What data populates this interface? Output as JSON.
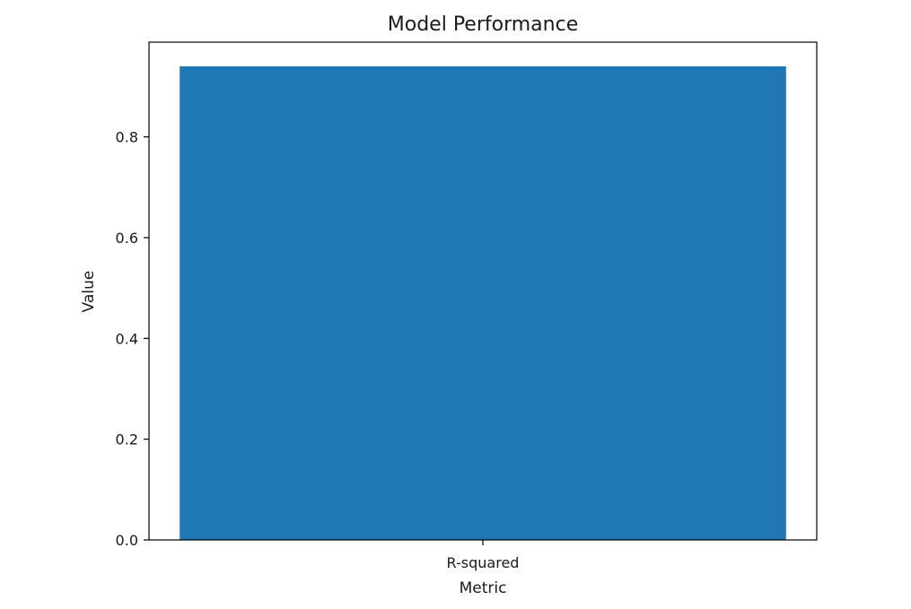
{
  "chart_data": {
    "type": "bar",
    "title": "Model Performance",
    "xlabel": "Metric",
    "ylabel": "Value",
    "categories": [
      "R-squared"
    ],
    "values": [
      0.94
    ],
    "ylim": [
      0,
      0.988
    ],
    "yticks": [
      0.0,
      0.2,
      0.4,
      0.6,
      0.8
    ],
    "ytick_labels": [
      "0.0",
      "0.2",
      "0.4",
      "0.6",
      "0.8"
    ],
    "grid": false,
    "colors": {
      "bar": "#1f77b4",
      "axes": "#000000"
    }
  }
}
